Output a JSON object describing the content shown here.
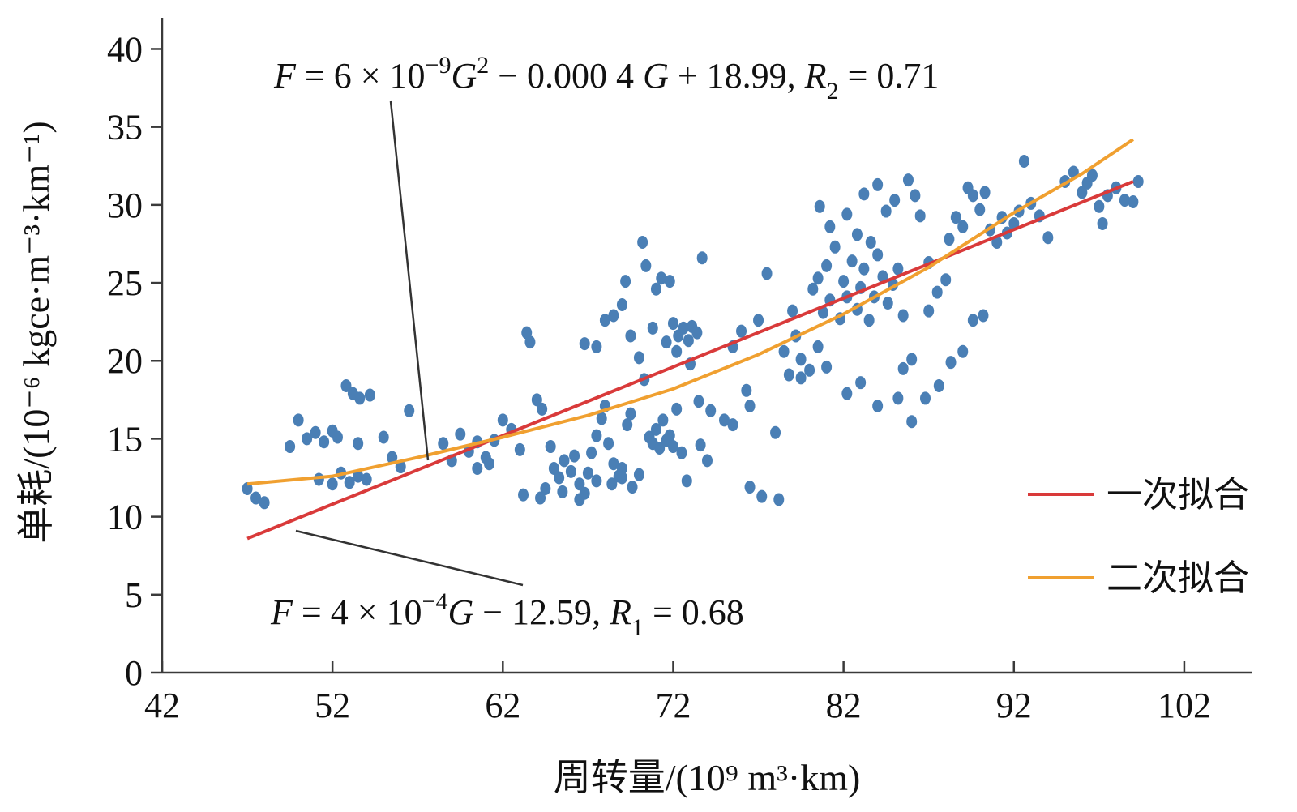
{
  "chart_data": {
    "type": "scatter",
    "xlabel": "周转量/(10⁹ m³·km)",
    "ylabel": "单耗/(10⁻⁶ kgce·m⁻³·km⁻¹)",
    "xlim": [
      42,
      106
    ],
    "ylim": [
      0,
      42
    ],
    "xticks": [
      42,
      52,
      62,
      72,
      82,
      92,
      102
    ],
    "yticks": [
      0,
      5,
      10,
      15,
      20,
      25,
      30,
      35,
      40
    ],
    "colors": {
      "points": "#4a7fb5",
      "linear": "#d93a3a",
      "quadratic": "#f0a030",
      "axis": "#3a3a3a"
    },
    "series": [
      {
        "name": "一次拟合",
        "kind": "line",
        "x": [
          47,
          99
        ],
        "y": [
          8.6,
          31.5
        ]
      },
      {
        "name": "二次拟合",
        "kind": "line",
        "x": [
          47,
          52,
          57,
          62,
          67,
          72,
          77,
          82,
          87,
          92,
          96,
          99
        ],
        "y": [
          12.1,
          12.6,
          13.8,
          15.1,
          16.5,
          18.2,
          20.4,
          23.0,
          26.0,
          29.5,
          32.0,
          34.2
        ]
      },
      {
        "name": "data",
        "kind": "scatter",
        "points": [
          [
            47,
            11.8
          ],
          [
            47.5,
            11.2
          ],
          [
            48,
            10.9
          ],
          [
            49.5,
            14.5
          ],
          [
            50,
            16.2
          ],
          [
            50.5,
            15.0
          ],
          [
            51,
            15.4
          ],
          [
            51.5,
            14.8
          ],
          [
            52,
            15.5
          ],
          [
            52.3,
            15.1
          ],
          [
            51.2,
            12.4
          ],
          [
            52,
            12.1
          ],
          [
            52.5,
            12.8
          ],
          [
            53,
            12.2
          ],
          [
            53.5,
            12.6
          ],
          [
            54,
            12.4
          ],
          [
            52.8,
            18.4
          ],
          [
            53.2,
            17.9
          ],
          [
            53.6,
            17.6
          ],
          [
            54.2,
            17.8
          ],
          [
            53.5,
            14.7
          ],
          [
            55,
            15.1
          ],
          [
            56.5,
            16.8
          ],
          [
            55.5,
            13.8
          ],
          [
            56,
            13.2
          ],
          [
            58.5,
            14.7
          ],
          [
            59,
            13.6
          ],
          [
            59.5,
            15.3
          ],
          [
            60,
            14.2
          ],
          [
            60.5,
            14.8
          ],
          [
            61,
            13.8
          ],
          [
            61.5,
            14.9
          ],
          [
            62,
            16.2
          ],
          [
            62.5,
            15.6
          ],
          [
            63,
            14.3
          ],
          [
            61.2,
            13.4
          ],
          [
            60.5,
            13.1
          ],
          [
            63.4,
            21.8
          ],
          [
            63.6,
            21.2
          ],
          [
            64,
            17.5
          ],
          [
            64.3,
            16.9
          ],
          [
            64.8,
            14.5
          ],
          [
            65,
            13.1
          ],
          [
            65.3,
            12.5
          ],
          [
            65.6,
            13.6
          ],
          [
            66,
            12.9
          ],
          [
            66.2,
            13.9
          ],
          [
            66.5,
            12.1
          ],
          [
            66.8,
            11.5
          ],
          [
            67,
            12.8
          ],
          [
            67.2,
            14.1
          ],
          [
            67.5,
            15.2
          ],
          [
            67.8,
            16.3
          ],
          [
            68,
            17.1
          ],
          [
            68.2,
            14.7
          ],
          [
            68.5,
            13.4
          ],
          [
            68.8,
            12.6
          ],
          [
            69,
            13.1
          ],
          [
            69.3,
            15.9
          ],
          [
            69.5,
            16.6
          ],
          [
            64.5,
            11.8
          ],
          [
            65.5,
            11.6
          ],
          [
            66.5,
            11.1
          ],
          [
            63.2,
            11.4
          ],
          [
            64.2,
            11.2
          ],
          [
            67.5,
            12.3
          ],
          [
            68.4,
            12.1
          ],
          [
            69,
            12.5
          ],
          [
            69.6,
            11.9
          ],
          [
            70,
            12.7
          ],
          [
            66.8,
            21.1
          ],
          [
            67.5,
            20.9
          ],
          [
            68,
            22.6
          ],
          [
            68.5,
            22.9
          ],
          [
            69,
            23.6
          ],
          [
            69.2,
            25.1
          ],
          [
            69.5,
            21.6
          ],
          [
            70,
            20.2
          ],
          [
            70.3,
            18.8
          ],
          [
            70.6,
            15.1
          ],
          [
            70.8,
            14.7
          ],
          [
            71,
            15.6
          ],
          [
            71.2,
            14.4
          ],
          [
            71.4,
            16.2
          ],
          [
            71.6,
            14.9
          ],
          [
            71.8,
            15.2
          ],
          [
            72,
            14.5
          ],
          [
            72.2,
            16.9
          ],
          [
            72.5,
            14.1
          ],
          [
            72.8,
            12.3
          ],
          [
            70.2,
            27.6
          ],
          [
            70.4,
            26.1
          ],
          [
            71,
            24.6
          ],
          [
            71.3,
            25.3
          ],
          [
            71.8,
            25.1
          ],
          [
            72,
            22.4
          ],
          [
            72.3,
            21.6
          ],
          [
            72.6,
            22.1
          ],
          [
            72.9,
            21.3
          ],
          [
            73.1,
            22.2
          ],
          [
            73.4,
            21.8
          ],
          [
            73.7,
            26.6
          ],
          [
            70.8,
            22.1
          ],
          [
            71.6,
            21.2
          ],
          [
            72.2,
            20.6
          ],
          [
            73,
            19.8
          ],
          [
            73.5,
            17.4
          ],
          [
            74.2,
            16.8
          ],
          [
            75,
            16.2
          ],
          [
            75.5,
            15.9
          ],
          [
            75.5,
            20.9
          ],
          [
            76,
            21.9
          ],
          [
            76.3,
            18.1
          ],
          [
            76.5,
            17.1
          ],
          [
            77,
            22.6
          ],
          [
            77.5,
            25.6
          ],
          [
            78,
            15.4
          ],
          [
            79,
            23.2
          ],
          [
            79.5,
            18.9
          ],
          [
            80,
            19.4
          ],
          [
            80.2,
            24.6
          ],
          [
            80.5,
            25.3
          ],
          [
            81,
            26.1
          ],
          [
            81.2,
            23.9
          ],
          [
            81.5,
            27.3
          ],
          [
            81.8,
            22.7
          ],
          [
            82,
            25.1
          ],
          [
            82.2,
            24.1
          ],
          [
            82.5,
            26.4
          ],
          [
            82.8,
            23.3
          ],
          [
            83,
            24.7
          ],
          [
            83.2,
            25.9
          ],
          [
            83.5,
            22.6
          ],
          [
            83.8,
            24.1
          ],
          [
            84,
            26.8
          ],
          [
            84.3,
            25.4
          ],
          [
            84.6,
            23.7
          ],
          [
            84.9,
            24.9
          ],
          [
            85.2,
            25.9
          ],
          [
            85.5,
            22.9
          ],
          [
            80.6,
            29.9
          ],
          [
            81.2,
            28.6
          ],
          [
            82.2,
            29.4
          ],
          [
            82.8,
            28.1
          ],
          [
            83.2,
            30.7
          ],
          [
            84,
            31.3
          ],
          [
            84.5,
            29.6
          ],
          [
            85,
            30.3
          ],
          [
            85.8,
            31.6
          ],
          [
            86.2,
            30.6
          ],
          [
            86.5,
            29.3
          ],
          [
            87,
            26.3
          ],
          [
            87.5,
            24.4
          ],
          [
            88,
            25.2
          ],
          [
            88.2,
            27.8
          ],
          [
            88.6,
            29.2
          ],
          [
            89,
            28.6
          ],
          [
            89.3,
            31.1
          ],
          [
            89.6,
            30.6
          ],
          [
            90,
            29.7
          ],
          [
            90.3,
            30.8
          ],
          [
            90.6,
            28.4
          ],
          [
            91,
            27.6
          ],
          [
            91.3,
            29.2
          ],
          [
            91.6,
            28.2
          ],
          [
            92,
            28.8
          ],
          [
            92.3,
            29.6
          ],
          [
            92.6,
            32.8
          ],
          [
            93,
            30.1
          ],
          [
            93.5,
            29.3
          ],
          [
            94,
            27.9
          ],
          [
            95,
            31.5
          ],
          [
            95.5,
            32.1
          ],
          [
            96,
            30.8
          ],
          [
            96.3,
            31.4
          ],
          [
            96.6,
            31.9
          ],
          [
            97,
            29.9
          ],
          [
            97.5,
            30.6
          ],
          [
            98,
            31.1
          ],
          [
            98.5,
            30.3
          ],
          [
            99,
            30.2
          ],
          [
            99.3,
            31.5
          ],
          [
            97.2,
            28.8
          ],
          [
            79.5,
            20.1
          ],
          [
            80.5,
            20.9
          ],
          [
            81,
            19.6
          ],
          [
            82.2,
            17.9
          ],
          [
            83,
            18.6
          ],
          [
            84,
            17.1
          ],
          [
            85.2,
            17.6
          ],
          [
            86,
            16.1
          ],
          [
            86.8,
            17.6
          ],
          [
            87.6,
            18.4
          ],
          [
            88.3,
            19.9
          ],
          [
            89,
            20.6
          ],
          [
            89.6,
            22.6
          ],
          [
            90.2,
            22.9
          ],
          [
            86,
            20.1
          ],
          [
            85.5,
            19.5
          ],
          [
            87,
            23.2
          ],
          [
            76.5,
            11.9
          ],
          [
            77.2,
            11.3
          ],
          [
            78.2,
            11.1
          ],
          [
            74,
            13.6
          ],
          [
            73.6,
            14.6
          ],
          [
            78.5,
            20.6
          ],
          [
            78.8,
            19.1
          ],
          [
            79.2,
            21.6
          ],
          [
            80.8,
            23.1
          ],
          [
            83.6,
            27.6
          ]
        ]
      }
    ],
    "annotations": {
      "quad": {
        "F": "F",
        "a": " = 6 × 10",
        "exp1": "−9",
        "G1": "G",
        "exp2": "2",
        "b": " − 0.000 4 ",
        "G2": "G",
        "c": " + 18.99, ",
        "R": "R",
        "sub": "2",
        "d": " = 0.71"
      },
      "lin": {
        "F": "F",
        "a": " = 4 × 10",
        "exp1": "−4",
        "G1": "G",
        "b": " − 12.59, ",
        "R": "R",
        "sub": "1",
        "d": " = 0.68"
      }
    },
    "legend": {
      "position": "right",
      "items": [
        "一次拟合",
        "二次拟合"
      ]
    }
  }
}
